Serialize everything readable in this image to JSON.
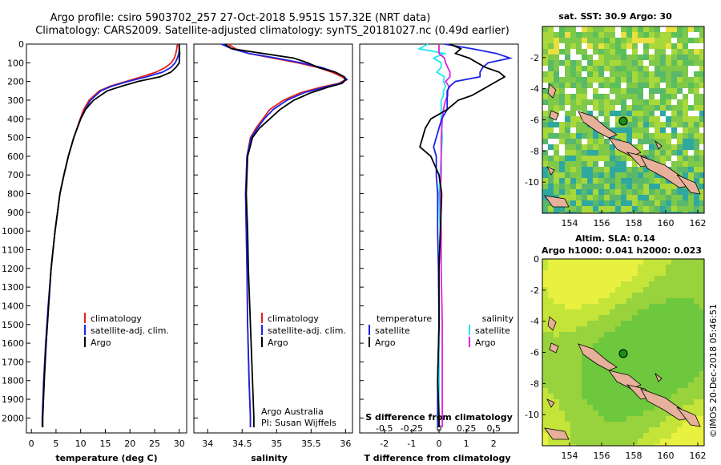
{
  "header": {
    "line1": "Argo profile: csiro 5903702_257 27-Oct-2018 5.951S 157.32E (NRT data)",
    "line2": "Climatology: CARS2009. Satellite-adjusted climatology: synTS_20181027.nc (0.49d earlier)"
  },
  "colors": {
    "climatology": "#e8201a",
    "satellite": "#1a22e8",
    "argo": "#000000",
    "sal_satellite": "#20e8f0",
    "sal_argo": "#e020e0"
  },
  "depth_ticks": [
    "0",
    "100",
    "200",
    "300",
    "400",
    "500",
    "600",
    "700",
    "800",
    "900",
    "1000",
    "1100",
    "1200",
    "1300",
    "1400",
    "1500",
    "1600",
    "1700",
    "1800",
    "1900",
    "2000"
  ],
  "temperature": {
    "xlabel": "temperature (deg C)",
    "ticks": [
      "0",
      "5",
      "10",
      "15",
      "20",
      "25",
      "30"
    ],
    "legend": [
      "climatology",
      "satellite-adj. clim.",
      "Argo"
    ]
  },
  "salinity": {
    "xlabel": "salinity",
    "ticks": [
      "34",
      "34.5",
      "35",
      "35.5",
      "36"
    ],
    "legend": [
      "climatology",
      "satellite-adj. clim.",
      "Argo"
    ],
    "credit1": "Argo Australia",
    "credit2": "PI: Susan Wijffels"
  },
  "difference": {
    "xlabel": "T difference from climatology",
    "ticks": [
      "-2",
      "-1",
      "0",
      "1",
      "2"
    ],
    "s_label": "S difference from climatology",
    "s_ticks": [
      "-0.5",
      "-0.25",
      "0",
      "0.25",
      "0.5"
    ],
    "legend_t_title": "temperature",
    "legend_s_title": "salinity",
    "legend_t": [
      "satellite",
      "Argo"
    ],
    "legend_s": [
      "satellite",
      "Argo"
    ]
  },
  "map_sst": {
    "title": "sat. SST: 30.9 Argo: 30",
    "yticks": [
      "-2",
      "-4",
      "-6",
      "-8",
      "-10"
    ],
    "xticks": [
      "154",
      "156",
      "158",
      "160",
      "162"
    ]
  },
  "map_sla": {
    "title1": "Altim. SLA: 0.14",
    "title2": "Argo h1000: 0.041 h2000: 0.023",
    "yticks": [
      "0",
      "-2",
      "-4",
      "-6",
      "-8",
      "-10"
    ],
    "xticks": [
      "154",
      "156",
      "158",
      "160",
      "162"
    ]
  },
  "footer": {
    "stamp": "©IMOS 20-Dec-2018 05:46:51"
  },
  "chart_data": [
    {
      "type": "line",
      "title": "",
      "xlabel": "temperature (deg C)",
      "ylabel": "",
      "xlim": [
        -1,
        31.5
      ],
      "ylim": [
        2080,
        0
      ],
      "depth": [
        0,
        25,
        50,
        75,
        100,
        125,
        150,
        175,
        200,
        225,
        250,
        300,
        350,
        400,
        500,
        600,
        700,
        800,
        900,
        1000,
        1200,
        1400,
        1600,
        1800,
        2000,
        2050
      ],
      "series": [
        {
          "name": "climatology",
          "values": [
            29.6,
            29.5,
            29.3,
            29.0,
            28.4,
            27.2,
            25.3,
            22.3,
            19.2,
            16.0,
            13.8,
            11.7,
            10.6,
            9.9,
            8.6,
            7.5,
            6.6,
            5.8,
            5.3,
            4.8,
            4.0,
            3.5,
            3.0,
            2.6,
            2.3,
            2.3
          ]
        },
        {
          "name": "satellite-adj. clim.",
          "values": [
            29.9,
            30.0,
            29.9,
            29.6,
            29.2,
            28.3,
            26.6,
            23.4,
            19.6,
            16.3,
            14.1,
            12.0,
            10.9,
            10.0,
            8.6,
            7.5,
            6.6,
            5.8,
            5.3,
            4.8,
            4.0,
            3.4,
            2.9,
            2.5,
            2.2,
            2.2
          ]
        },
        {
          "name": "Argo",
          "values": [
            30.0,
            30.0,
            30.1,
            30.0,
            30.0,
            29.3,
            28.3,
            26.1,
            21.6,
            18.3,
            15.4,
            12.6,
            11.0,
            10.0,
            8.6,
            7.5,
            6.6,
            5.8,
            5.3,
            4.8,
            4.0,
            3.5,
            3.0,
            2.6,
            2.3,
            2.3
          ]
        }
      ]
    },
    {
      "type": "line",
      "title": "",
      "xlabel": "salinity",
      "ylabel": "",
      "xlim": [
        33.8,
        36.1
      ],
      "ylim": [
        2080,
        0
      ],
      "depth": [
        0,
        25,
        50,
        75,
        100,
        125,
        150,
        175,
        190,
        210,
        230,
        260,
        300,
        350,
        400,
        450,
        500,
        600,
        800,
        1000,
        1200,
        1500,
        1800,
        2000,
        2050
      ],
      "series": [
        {
          "name": "climatology",
          "values": [
            34.3,
            34.4,
            34.6,
            34.95,
            35.3,
            35.6,
            35.8,
            35.95,
            36.0,
            35.9,
            35.65,
            35.35,
            35.1,
            34.9,
            34.8,
            34.7,
            34.62,
            34.57,
            34.55,
            34.56,
            34.57,
            34.58,
            34.6,
            34.62,
            34.62
          ]
        },
        {
          "name": "satellite-adj. clim.",
          "values": [
            34.2,
            34.35,
            34.6,
            35.0,
            35.35,
            35.65,
            35.85,
            35.98,
            36.02,
            35.92,
            35.7,
            35.4,
            35.15,
            34.95,
            34.82,
            34.72,
            34.63,
            34.57,
            34.55,
            34.56,
            34.57,
            34.58,
            34.6,
            34.62,
            34.62
          ]
        },
        {
          "name": "Argo",
          "values": [
            34.25,
            34.35,
            34.8,
            35.25,
            35.45,
            35.6,
            35.85,
            35.98,
            36.0,
            35.95,
            35.75,
            35.5,
            35.25,
            35.05,
            34.9,
            34.75,
            34.65,
            34.58,
            34.56,
            34.58,
            34.59,
            34.62,
            34.65,
            34.67,
            34.67
          ]
        }
      ]
    },
    {
      "type": "line",
      "title": "",
      "xlabel": "T difference from climatology",
      "ylabel": "",
      "xlim": [
        -2.9,
        2.9
      ],
      "ylim": [
        2080,
        0
      ],
      "depth": [
        0,
        25,
        50,
        75,
        100,
        125,
        150,
        175,
        200,
        225,
        250,
        275,
        300,
        325,
        350,
        400,
        450,
        500,
        550,
        600,
        700,
        800,
        1000,
        1200,
        1500,
        1800,
        2000,
        2050
      ],
      "series": [
        {
          "name": "temperature satellite",
          "values": [
            0.2,
            1.2,
            2.1,
            2.6,
            1.8,
            1.6,
            1.5,
            1.5,
            0.6,
            0.4,
            0.3,
            0.3,
            0.3,
            0.3,
            0.3,
            0.1,
            0.0,
            -0.1,
            -0.2,
            -0.1,
            -0.1,
            -0.05,
            -0.05,
            -0.02,
            0.0,
            -0.05,
            -0.05,
            -0.05
          ]
        },
        {
          "name": "temperature Argo",
          "values": [
            0.4,
            0.8,
            0.6,
            1.1,
            1.4,
            1.7,
            2.2,
            2.4,
            2.1,
            1.8,
            1.5,
            1.2,
            0.7,
            0.5,
            0.3,
            -0.3,
            -0.5,
            -0.6,
            -0.7,
            -0.3,
            0.0,
            0.1,
            0.05,
            0.0,
            0.0,
            -0.05,
            0.0,
            0.0
          ]
        }
      ]
    },
    {
      "type": "line",
      "title": "",
      "xlabel": "S difference from climatology",
      "ylabel": "",
      "xlim": [
        -0.725,
        0.725
      ],
      "ylim": [
        2080,
        0
      ],
      "depth": [
        0,
        25,
        50,
        75,
        100,
        125,
        150,
        175,
        200,
        225,
        250,
        275,
        300,
        350,
        400,
        500,
        600,
        700,
        800,
        1000,
        1200,
        1500,
        1800,
        2000,
        2050
      ],
      "series": [
        {
          "name": "salinity satellite",
          "values": [
            -0.1,
            -0.18,
            0.05,
            -0.05,
            0.02,
            0.02,
            -0.02,
            0.05,
            0.04,
            0.06,
            0.04,
            0.04,
            0.02,
            0.02,
            0.02,
            0.03,
            0.02,
            0.01,
            0.0,
            0.01,
            0.0,
            0.0,
            0.0,
            0.0,
            0.0
          ]
        },
        {
          "name": "salinity Argo",
          "values": [
            0.0,
            0.0,
            0.0,
            0.05,
            0.06,
            0.08,
            0.1,
            0.1,
            0.06,
            0.09,
            0.08,
            0.08,
            0.06,
            0.04,
            0.03,
            0.02,
            0.02,
            0.02,
            0.01,
            0.02,
            0.02,
            0.03,
            0.03,
            0.03,
            0.03
          ]
        }
      ]
    }
  ]
}
